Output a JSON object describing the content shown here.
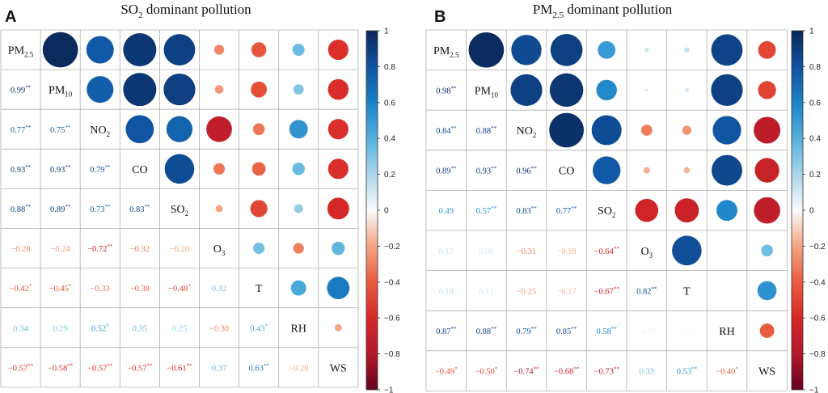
{
  "variables": [
    {
      "base": "PM",
      "sub": "2.5"
    },
    {
      "base": "PM",
      "sub": "10"
    },
    {
      "base": "NO",
      "sub": "2"
    },
    {
      "base": "CO",
      "sub": ""
    },
    {
      "base": "SO",
      "sub": "2"
    },
    {
      "base": "O",
      "sub": "3"
    },
    {
      "base": "T",
      "sub": ""
    },
    {
      "base": "RH",
      "sub": ""
    },
    {
      "base": "WS",
      "sub": ""
    }
  ],
  "colorbar": {
    "ticks": [
      1,
      0.8,
      0.6,
      0.4,
      0.2,
      0,
      -0.2,
      -0.4,
      -0.6,
      -0.8,
      -1
    ],
    "tick_labels": [
      "1",
      "0.8",
      "0.6",
      "0.4",
      "0.2",
      "0",
      "−0.2",
      "−0.4",
      "−0.6",
      "−0.8",
      "−1"
    ]
  },
  "chart_data": [
    {
      "type": "heatmap",
      "panel_letter": "A",
      "title_parts": [
        "SO",
        "2",
        " dominant pollution"
      ],
      "value_range": [
        -1,
        1
      ],
      "matrix": [
        [
          1.0,
          0.99,
          0.77,
          0.93,
          0.88,
          -0.28,
          -0.42,
          0.34,
          -0.57
        ],
        [
          0.99,
          1.0,
          0.75,
          0.93,
          0.89,
          -0.24,
          -0.45,
          0.29,
          -0.58
        ],
        [
          0.77,
          0.75,
          1.0,
          0.79,
          0.73,
          -0.72,
          -0.33,
          0.52,
          -0.57
        ],
        [
          0.93,
          0.93,
          0.79,
          1.0,
          0.83,
          -0.32,
          -0.38,
          0.35,
          -0.57
        ],
        [
          0.88,
          0.89,
          0.73,
          0.83,
          1.0,
          -0.2,
          -0.48,
          0.25,
          -0.61
        ],
        [
          -0.28,
          -0.24,
          -0.72,
          -0.32,
          -0.2,
          1.0,
          0.32,
          -0.3,
          0.37
        ],
        [
          -0.42,
          -0.45,
          -0.33,
          -0.38,
          -0.48,
          0.32,
          1.0,
          0.43,
          0.63
        ],
        [
          0.34,
          0.29,
          0.52,
          0.35,
          0.25,
          -0.3,
          0.43,
          1.0,
          -0.2
        ],
        [
          -0.57,
          -0.58,
          -0.57,
          -0.57,
          -0.61,
          0.37,
          0.63,
          -0.2,
          1.0
        ]
      ],
      "lower_labels": [
        [],
        [
          "0.99**"
        ],
        [
          "0.77**",
          "0.75**"
        ],
        [
          "0.93**",
          "0.93**",
          "0.79**"
        ],
        [
          "0.88**",
          "0.89**",
          "0.73**",
          "0.83**"
        ],
        [
          "−0.28",
          "−0.24",
          "−0.72**",
          "−0.32",
          "−0.20"
        ],
        [
          "−0.42*",
          "−0.45*",
          "−0.33",
          "−0.38",
          "−0.48*",
          "0.32"
        ],
        [
          "0.34",
          "0.29",
          "0.52*",
          "0.35",
          "0.25",
          "−0.30",
          "0.43*"
        ],
        [
          "−0.57**",
          "−0.58**",
          "−0.57**",
          "−0.57**",
          "−0.61**",
          "0.37",
          "0.63**",
          "−0.20"
        ]
      ]
    },
    {
      "type": "heatmap",
      "panel_letter": "B",
      "title_parts": [
        "PM",
        "2.5",
        " dominant pollution"
      ],
      "value_range": [
        -1,
        1
      ],
      "matrix": [
        [
          1.0,
          0.98,
          0.84,
          0.89,
          0.49,
          0.12,
          0.14,
          0.87,
          -0.49
        ],
        [
          0.98,
          1.0,
          0.88,
          0.93,
          0.57,
          0.08,
          0.11,
          0.88,
          -0.5
        ],
        [
          0.84,
          0.88,
          1.0,
          0.96,
          0.83,
          -0.31,
          -0.25,
          0.79,
          -0.74
        ],
        [
          0.89,
          0.93,
          0.96,
          1.0,
          0.77,
          -0.18,
          -0.17,
          0.85,
          -0.68
        ],
        [
          0.49,
          0.57,
          0.83,
          0.77,
          1.0,
          -0.64,
          -0.67,
          0.58,
          -0.73
        ],
        [
          0.12,
          0.08,
          -0.31,
          -0.18,
          -0.64,
          1.0,
          0.82,
          -0.02,
          0.33
        ],
        [
          0.14,
          0.11,
          -0.25,
          -0.17,
          -0.67,
          0.82,
          1.0,
          0.01,
          0.53
        ],
        [
          0.87,
          0.88,
          0.79,
          0.85,
          0.58,
          -0.02,
          0.01,
          1.0,
          -0.4
        ],
        [
          -0.49,
          -0.5,
          -0.74,
          -0.68,
          -0.73,
          0.33,
          0.53,
          -0.4,
          1.0
        ]
      ],
      "lower_labels": [
        [],
        [
          "0.98**"
        ],
        [
          "0.84**",
          "0.88**"
        ],
        [
          "0.89**",
          "0.93**",
          "0.96**"
        ],
        [
          "0.49",
          "0.57**",
          "0.83**",
          "0.77**"
        ],
        [
          "0.12",
          "0.08",
          "−0.31",
          "−0.18",
          "−0.64**"
        ],
        [
          "0.14",
          "0.11",
          "−0.25",
          "−0.17",
          "−0.67**",
          "0.82**"
        ],
        [
          "0.87**",
          "0.88**",
          "0.79**",
          "0.85**",
          "0.58**",
          "−0.02",
          "0.01"
        ],
        [
          "−0.49*",
          "−0.50*",
          "−0.74**",
          "−0.68**",
          "−0.73**",
          "0.33",
          "0.53**",
          "−0.40*"
        ]
      ]
    }
  ]
}
